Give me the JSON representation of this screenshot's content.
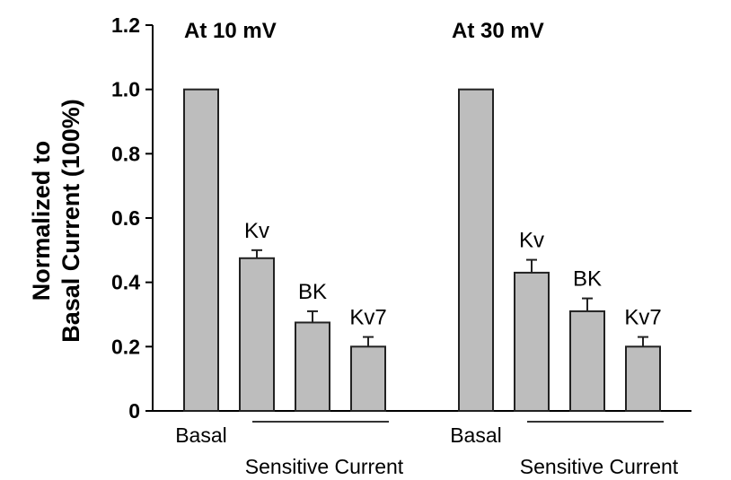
{
  "chart_data": {
    "type": "bar",
    "ylabel_lines": [
      "Normalized to",
      "Basal Current (100%)"
    ],
    "ylim": [
      0,
      1.2
    ],
    "yticks": [
      "0",
      "0.2",
      "0.4",
      "0.6",
      "0.8",
      "1.0",
      "1.2"
    ],
    "ytick_values": [
      0,
      0.2,
      0.4,
      0.6,
      0.8,
      1.0,
      1.2
    ],
    "bar_color": "#bdbdbd",
    "panels": [
      {
        "title": "At 10 mV",
        "bars": [
          {
            "label": "",
            "value": 1.0,
            "error": 0
          },
          {
            "label": "Kv",
            "value": 0.475,
            "error": 0.025
          },
          {
            "label": "BK",
            "value": 0.275,
            "error": 0.035
          },
          {
            "label": "Kv7",
            "value": 0.2,
            "error": 0.03
          }
        ],
        "basal_label": "Basal",
        "group_label": "Sensitive Current"
      },
      {
        "title": "At 30 mV",
        "bars": [
          {
            "label": "",
            "value": 1.0,
            "error": 0
          },
          {
            "label": "Kv",
            "value": 0.43,
            "error": 0.04
          },
          {
            "label": "BK",
            "value": 0.31,
            "error": 0.04
          },
          {
            "label": "Kv7",
            "value": 0.2,
            "error": 0.03
          }
        ],
        "basal_label": "Basal",
        "group_label": "Sensitive Current"
      }
    ]
  }
}
